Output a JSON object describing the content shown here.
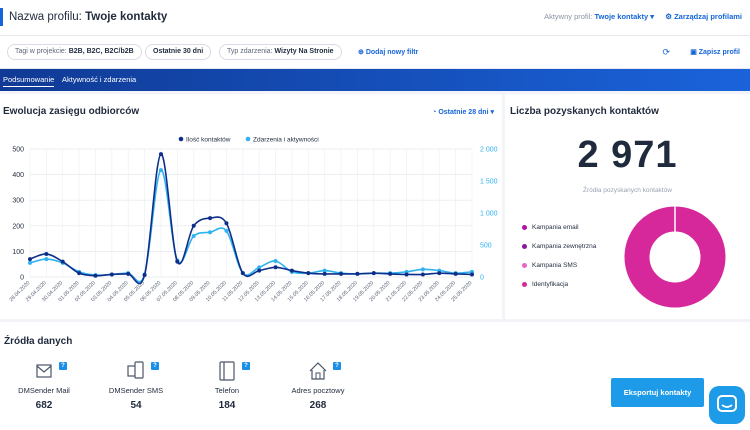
{
  "header": {
    "title_prefix": "Nazwa profilu:",
    "title_value": "Twoje kontakty",
    "active_profile_label": "Aktywny profil:",
    "active_profile_value": "Twoje kontakty",
    "manage_label": "Zarządzaj profilami"
  },
  "filters": {
    "tags_label": "Tagi w projekcie:",
    "tags_value": "B2B, B2C, B2C/b2B",
    "period": "Ostatnie 30 dni",
    "event_label": "Typ zdarzenia:",
    "event_value": "Wizyty Na Stronie",
    "add_filter": "Dodaj nowy filtr",
    "save_profile": "Zapisz profil"
  },
  "tabs": [
    {
      "label": "Podsumowanie"
    },
    {
      "label": "Aktywność i zdarzenia"
    }
  ],
  "reach": {
    "title": "Ewolucja zasięgu odbiorców",
    "range_label": "Ostatnie 28 dni"
  },
  "chart_data": {
    "type": "line",
    "categories": [
      "28.04.2020",
      "29.04.2020",
      "30.04.2020",
      "01.05.2020",
      "02.05.2020",
      "03.05.2020",
      "04.05.2020",
      "05.05.2020",
      "06.05.2020",
      "07.05.2020",
      "08.05.2020",
      "09.05.2020",
      "10.05.2020",
      "11.05.2020",
      "12.05.2020",
      "13.05.2020",
      "14.05.2020",
      "15.05.2020",
      "16.05.2020",
      "17.05.2020",
      "18.05.2020",
      "19.05.2020",
      "20.05.2020",
      "21.05.2020",
      "22.05.2020",
      "23.05.2020",
      "24.05.2020",
      "25.05.2020"
    ],
    "series": [
      {
        "name": "Ilość kontaktów",
        "axis": "left",
        "color": "#0d2f8a",
        "values": [
          70,
          90,
          60,
          15,
          5,
          10,
          12,
          8,
          480,
          60,
          200,
          230,
          210,
          15,
          25,
          38,
          25,
          15,
          12,
          12,
          12,
          15,
          12,
          10,
          10,
          15,
          12,
          10
        ]
      },
      {
        "name": "Zdarzenia i aktywności",
        "axis": "right",
        "color": "#2fb2f0",
        "values": [
          220,
          280,
          220,
          80,
          30,
          40,
          60,
          40,
          1670,
          260,
          640,
          700,
          720,
          60,
          150,
          250,
          80,
          60,
          100,
          60,
          50,
          60,
          60,
          80,
          120,
          100,
          60,
          80
        ]
      }
    ],
    "ylim_left": [
      0,
      500
    ],
    "yticks_left": [
      0,
      100,
      200,
      300,
      400,
      500
    ],
    "ylim_right": [
      0,
      2000
    ],
    "yticks_right": [
      0,
      500,
      1000,
      1500,
      2000
    ],
    "ytick_right_labels": [
      "0",
      "500",
      "1 000",
      "1 500",
      "2 000"
    ],
    "grid": true,
    "legend_position": "top"
  },
  "contacts": {
    "title": "Liczba pozyskanych kontaktów",
    "total": "2 971",
    "subtitle": "Źródła pozyskanych kontaktów",
    "legend": [
      {
        "label": "Kampania email",
        "color": "#b2129f"
      },
      {
        "label": "Kampania zewnętrzna",
        "color": "#8a1a9b"
      },
      {
        "label": "Kampania SMS",
        "color": "#e466c6"
      },
      {
        "label": "Identyfikacja",
        "color": "#d6289a"
      }
    ],
    "donut": [
      {
        "label": "Identyfikacja",
        "value": 100,
        "color": "#d6289a"
      }
    ]
  },
  "sources": {
    "title": "Źródła danych",
    "items": [
      {
        "label": "DMSender Mail",
        "value": "682",
        "icon": "mail-icon"
      },
      {
        "label": "DMSender SMS",
        "value": "54",
        "icon": "sms-icon"
      },
      {
        "label": "Telefon",
        "value": "184",
        "icon": "phone-icon"
      },
      {
        "label": "Adres pocztowy",
        "value": "268",
        "icon": "house-icon"
      }
    ],
    "help_glyph": "?",
    "export_label": "Eksportuj kontakty"
  }
}
